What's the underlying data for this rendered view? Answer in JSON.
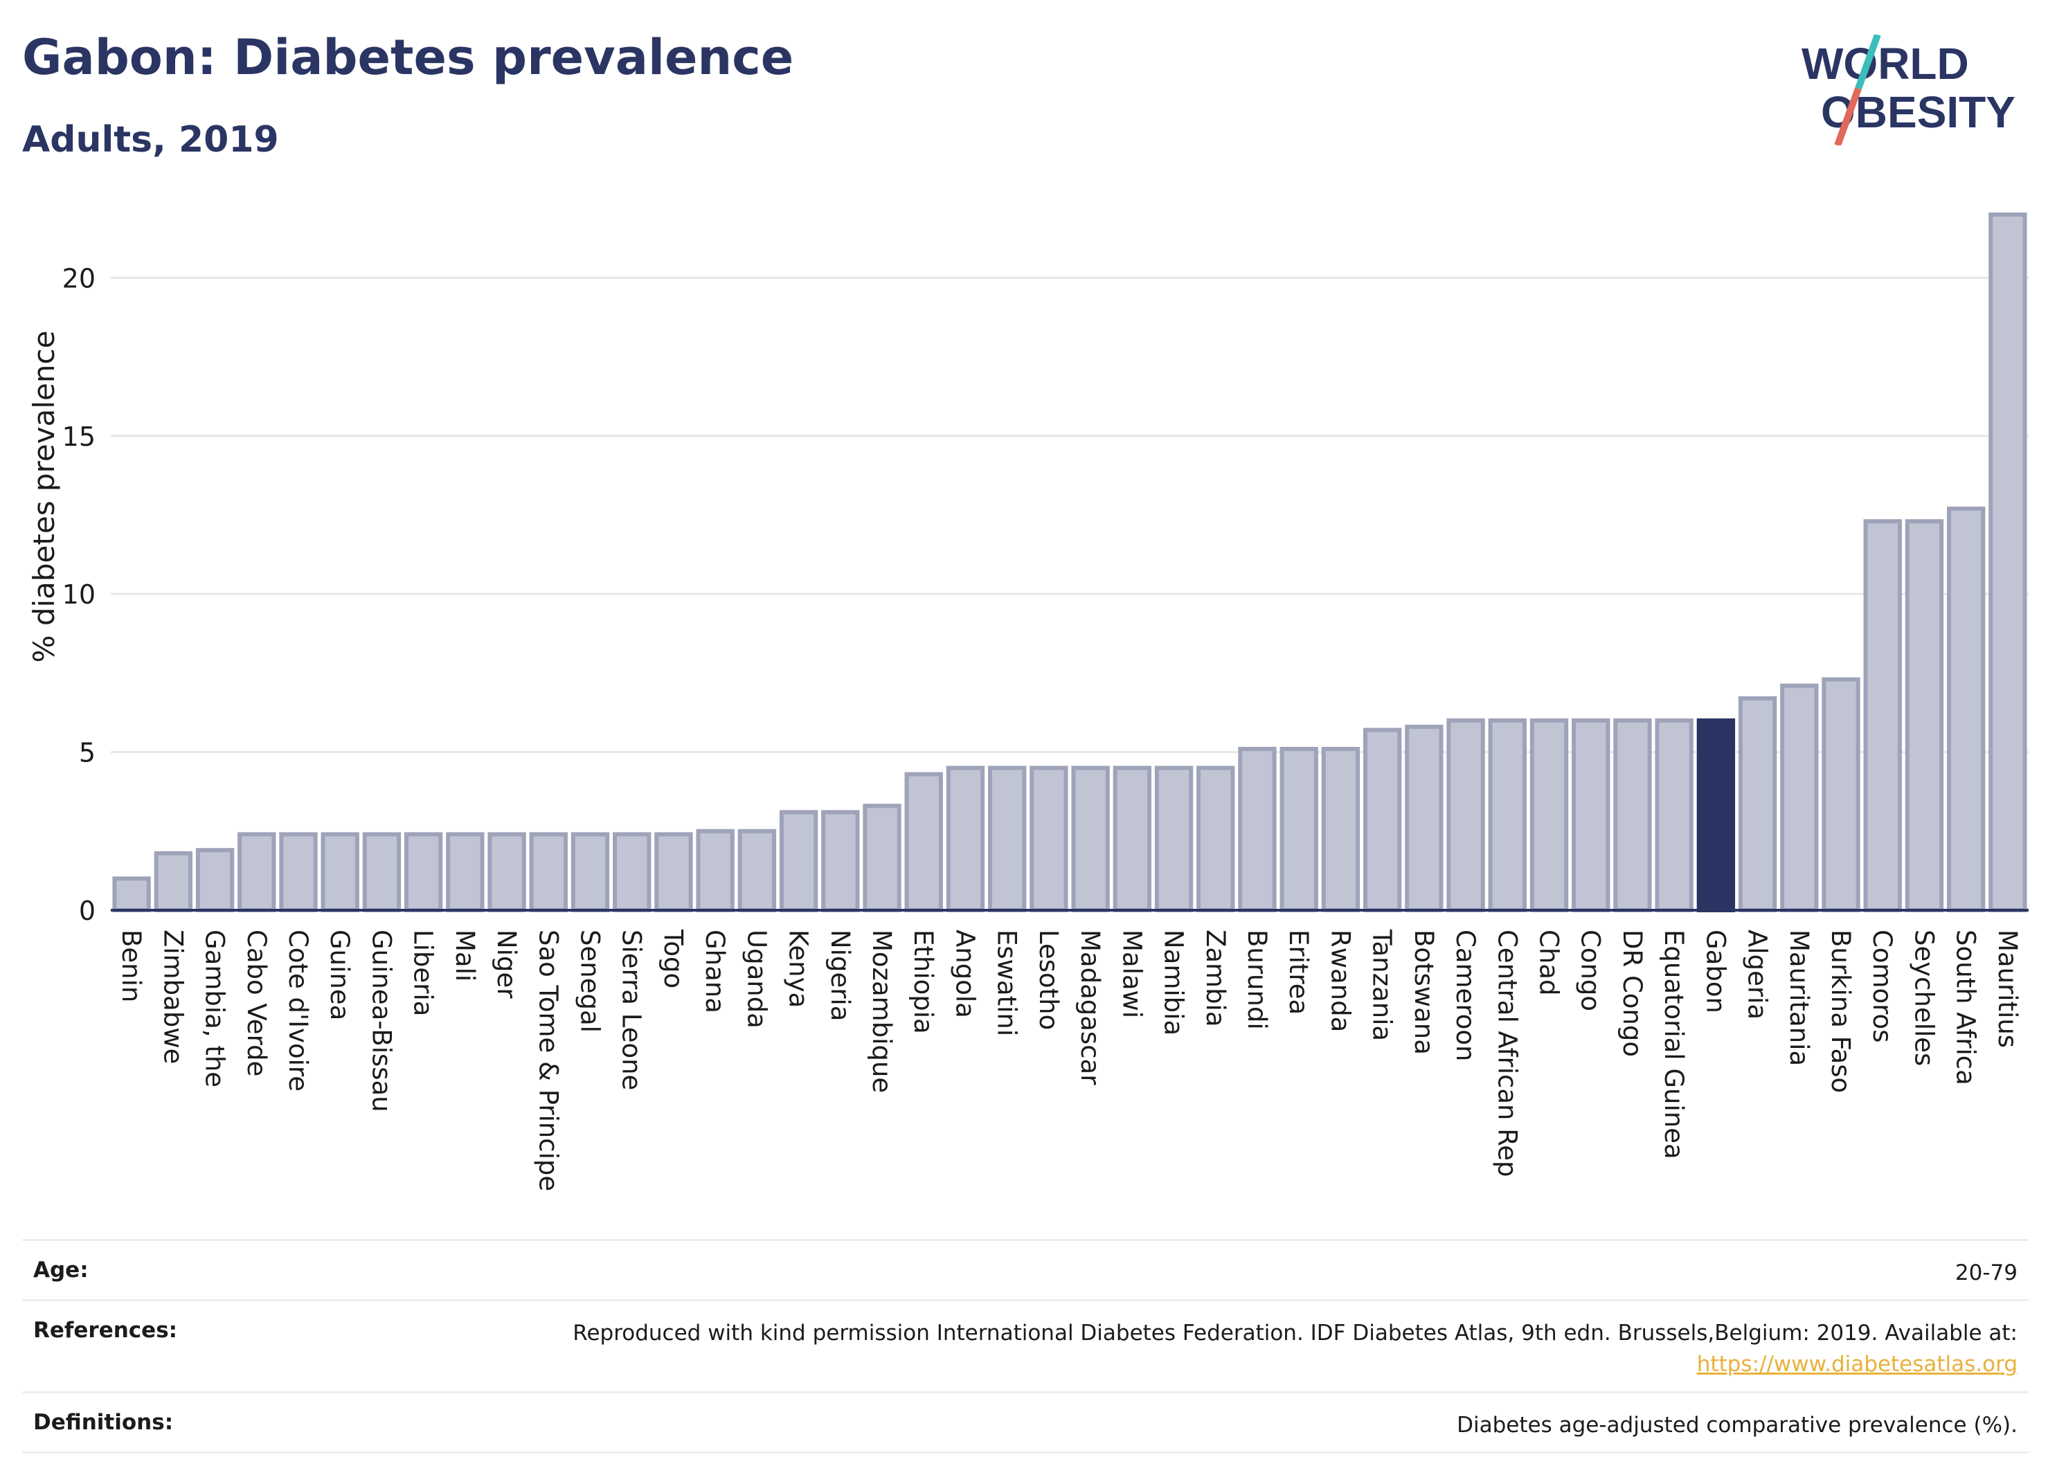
{
  "header": {
    "title": "Gabon: Diabetes prevalence",
    "subtitle": "Adults, 2019"
  },
  "logo": {
    "line1": "WORLD",
    "line2": "OBESITY",
    "colors": {
      "text": "#2b3563",
      "slash_top": "#3bbdbb",
      "slash_bottom": "#e2685a"
    }
  },
  "colors": {
    "bar": "#c0c4d3",
    "bar_border": "#9ea3b9",
    "highlight": "#2b3563",
    "axis": "#2b3563",
    "grid": "#e6e6e6",
    "link": "#e8b13a"
  },
  "chart_data": {
    "type": "bar",
    "title": "Gabon: Diabetes prevalence",
    "subtitle": "Adults, 2019",
    "xlabel": "",
    "ylabel": "% diabetes prevalence",
    "ylim": [
      0,
      22
    ],
    "yticks": [
      0,
      5,
      10,
      15,
      20
    ],
    "grid": true,
    "legend": "none",
    "highlight": "Gabon",
    "categories": [
      "Benin",
      "Zimbabwe",
      "Gambia, the",
      "Cabo Verde",
      "Cote d'Ivoire",
      "Guinea",
      "Guinea-Bissau",
      "Liberia",
      "Mali",
      "Niger",
      "Sao Tome & Principe",
      "Senegal",
      "Sierra Leone",
      "Togo",
      "Ghana",
      "Uganda",
      "Kenya",
      "Nigeria",
      "Mozambique",
      "Ethiopia",
      "Angola",
      "Eswatini",
      "Lesotho",
      "Madagascar",
      "Malawi",
      "Namibia",
      "Zambia",
      "Burundi",
      "Eritrea",
      "Rwanda",
      "Tanzania",
      "Botswana",
      "Cameroon",
      "Central African Rep",
      "Chad",
      "Congo",
      "DR Congo",
      "Equatorial Guinea",
      "Gabon",
      "Algeria",
      "Mauritania",
      "Burkina Faso",
      "Comoros",
      "Seychelles",
      "South Africa",
      "Mauritius"
    ],
    "values": [
      1.0,
      1.8,
      1.9,
      2.4,
      2.4,
      2.4,
      2.4,
      2.4,
      2.4,
      2.4,
      2.4,
      2.4,
      2.4,
      2.4,
      2.5,
      2.5,
      3.1,
      3.1,
      3.3,
      4.3,
      4.5,
      4.5,
      4.5,
      4.5,
      4.5,
      4.5,
      4.5,
      5.1,
      5.1,
      5.1,
      5.7,
      5.8,
      6.0,
      6.0,
      6.0,
      6.0,
      6.0,
      6.0,
      6.0,
      6.7,
      7.1,
      7.3,
      12.3,
      12.3,
      12.7,
      22.0
    ]
  },
  "info": {
    "age_label": "Age:",
    "age_value": "20-79",
    "references_label": "References:",
    "references_text": "Reproduced with kind permission International Diabetes Federation. IDF Diabetes Atlas, 9th edn. Brussels,Belgium: 2019. Available at:",
    "references_link": "https://www.diabetesatlas.org",
    "definitions_label": "Definitions:",
    "definitions_value": "Diabetes age-adjusted comparative prevalence (%)."
  }
}
